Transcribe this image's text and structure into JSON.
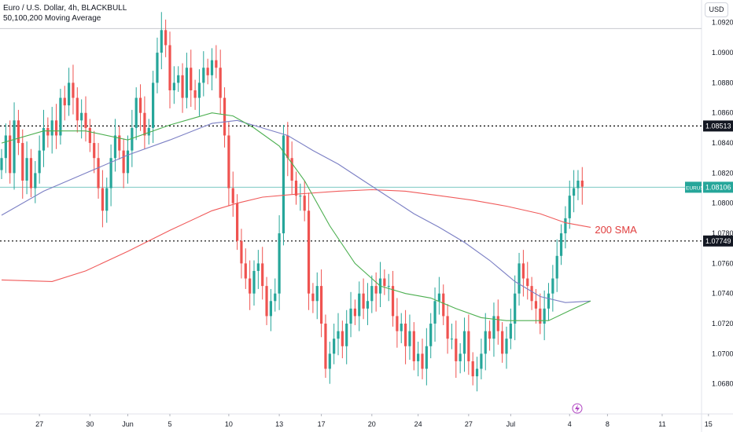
{
  "header": {
    "title": "Euro / U.S. Dollar, 4h, BLACKBULL",
    "indicator": "50,100,200 Moving Average"
  },
  "currency_button": "USD",
  "colors": {
    "up": "#26a69a",
    "down": "#ef5350",
    "sma50": "#4caf50",
    "sma100": "#7b7fc4",
    "sma200": "#f05a5a",
    "price_line": "#26a69a",
    "dotted_line": "#000000",
    "annotation": "#e03e3e"
  },
  "chart_data": {
    "type": "candlestick",
    "symbol": "EURUSD",
    "ylim": [
      1.066,
      1.0935
    ],
    "y_ticks": [
      "1.09200",
      "1.09000",
      "1.08800",
      "1.08600",
      "1.08400",
      "1.08200",
      "1.08000",
      "1.07800",
      "1.07600",
      "1.07400",
      "1.07200",
      "1.07000",
      "1.06800"
    ],
    "x_ticks": [
      {
        "label": "27",
        "idx": 9
      },
      {
        "label": "30",
        "idx": 21
      },
      {
        "label": "Jun",
        "idx": 30
      },
      {
        "label": "5",
        "idx": 40
      },
      {
        "label": "10",
        "idx": 54
      },
      {
        "label": "13",
        "idx": 66
      },
      {
        "label": "17",
        "idx": 76
      },
      {
        "label": "20",
        "idx": 88
      },
      {
        "label": "24",
        "idx": 99
      },
      {
        "label": "27",
        "idx": 111
      },
      {
        "label": "Jul",
        "idx": 121
      },
      {
        "label": "4",
        "idx": 135
      },
      {
        "label": "8",
        "idx": 144
      },
      {
        "label": "11",
        "idx": 157
      },
      {
        "label": "15",
        "idx": 168
      }
    ],
    "resistance_lines": [
      {
        "value": 1.08513,
        "label": "1.08513"
      },
      {
        "value": 1.07749,
        "label": "1.07749"
      }
    ],
    "top_line": 1.0916,
    "last_price": {
      "symbol": "EURUSD",
      "value": 1.08106,
      "label": "1.08106"
    },
    "annotation": {
      "text": "200 SMA",
      "value": 1.078,
      "idx": 141
    },
    "closes": [
      1.083,
      1.0845,
      1.082,
      1.0855,
      1.084,
      1.0815,
      1.083,
      1.081,
      1.082,
      1.0835,
      1.085,
      1.0845,
      1.0855,
      1.0845,
      1.087,
      1.0865,
      1.088,
      1.087,
      1.0855,
      1.086,
      1.085,
      1.084,
      1.083,
      1.081,
      1.0795,
      1.081,
      1.083,
      1.0845,
      1.0835,
      1.082,
      1.0835,
      1.085,
      1.087,
      1.086,
      1.0845,
      1.085,
      1.088,
      1.09,
      1.0915,
      1.0905,
      1.0875,
      1.088,
      1.0885,
      1.087,
      1.089,
      1.0875,
      1.087,
      1.088,
      1.089,
      1.0885,
      1.0895,
      1.089,
      1.087,
      1.0845,
      1.081,
      1.08,
      1.0775,
      1.076,
      1.075,
      1.074,
      1.0755,
      1.076,
      1.0745,
      1.0725,
      1.0735,
      1.074,
      1.078,
      1.0845,
      1.083,
      1.0815,
      1.0805,
      1.0805,
      1.0795,
      1.074,
      1.0735,
      1.0745,
      1.072,
      1.069,
      1.07,
      1.071,
      1.0715,
      1.0705,
      1.072,
      1.073,
      1.0725,
      1.074,
      1.073,
      1.0735,
      1.0745,
      1.074,
      1.075,
      1.0745,
      1.0745,
      1.0725,
      1.0715,
      1.072,
      1.0705,
      1.0715,
      1.0695,
      1.07,
      1.069,
      1.0705,
      1.072,
      1.0735,
      1.074,
      1.0725,
      1.071,
      1.071,
      1.0695,
      1.07,
      1.0715,
      1.0695,
      1.0685,
      1.069,
      1.07,
      1.0715,
      1.071,
      1.0725,
      1.0715,
      1.07,
      1.071,
      1.072,
      1.074,
      1.076,
      1.075,
      1.0745,
      1.0735,
      1.073,
      1.072,
      1.073,
      1.074,
      1.075,
      1.0765,
      1.078,
      1.079,
      1.0805,
      1.081,
      1.0815,
      1.0811
    ],
    "sma50": [
      [
        0,
        1.084
      ],
      [
        10,
        1.0848
      ],
      [
        20,
        1.0848
      ],
      [
        30,
        1.0842
      ],
      [
        40,
        1.0852
      ],
      [
        50,
        1.086
      ],
      [
        55,
        1.0858
      ],
      [
        60,
        1.085
      ],
      [
        66,
        1.0838
      ],
      [
        72,
        1.0815
      ],
      [
        78,
        1.0785
      ],
      [
        84,
        1.076
      ],
      [
        90,
        1.0745
      ],
      [
        96,
        1.074
      ],
      [
        102,
        1.0737
      ],
      [
        108,
        1.073
      ],
      [
        114,
        1.0724
      ],
      [
        120,
        1.0722
      ],
      [
        126,
        1.0722
      ],
      [
        130,
        1.0722
      ],
      [
        136,
        1.073
      ],
      [
        140,
        1.0735
      ]
    ],
    "sma100": [
      [
        0,
        1.0792
      ],
      [
        10,
        1.0808
      ],
      [
        20,
        1.082
      ],
      [
        30,
        1.0832
      ],
      [
        40,
        1.0842
      ],
      [
        50,
        1.0853
      ],
      [
        56,
        1.0855
      ],
      [
        62,
        1.085
      ],
      [
        68,
        1.0845
      ],
      [
        74,
        1.0835
      ],
      [
        80,
        1.0826
      ],
      [
        86,
        1.0815
      ],
      [
        92,
        1.0804
      ],
      [
        98,
        1.0793
      ],
      [
        104,
        1.0784
      ],
      [
        110,
        1.0774
      ],
      [
        116,
        1.0762
      ],
      [
        122,
        1.0748
      ],
      [
        128,
        1.0738
      ],
      [
        134,
        1.0734
      ],
      [
        140,
        1.0735
      ]
    ],
    "sma200": [
      [
        0,
        1.0749
      ],
      [
        12,
        1.0748
      ],
      [
        20,
        1.0755
      ],
      [
        30,
        1.0768
      ],
      [
        40,
        1.0782
      ],
      [
        50,
        1.0795
      ],
      [
        56,
        1.08
      ],
      [
        62,
        1.0804
      ],
      [
        70,
        1.0806
      ],
      [
        80,
        1.0808
      ],
      [
        88,
        1.0809
      ],
      [
        96,
        1.0808
      ],
      [
        104,
        1.0805
      ],
      [
        112,
        1.0802
      ],
      [
        120,
        1.0798
      ],
      [
        128,
        1.0793
      ],
      [
        134,
        1.0787
      ],
      [
        140,
        1.0784
      ]
    ]
  }
}
